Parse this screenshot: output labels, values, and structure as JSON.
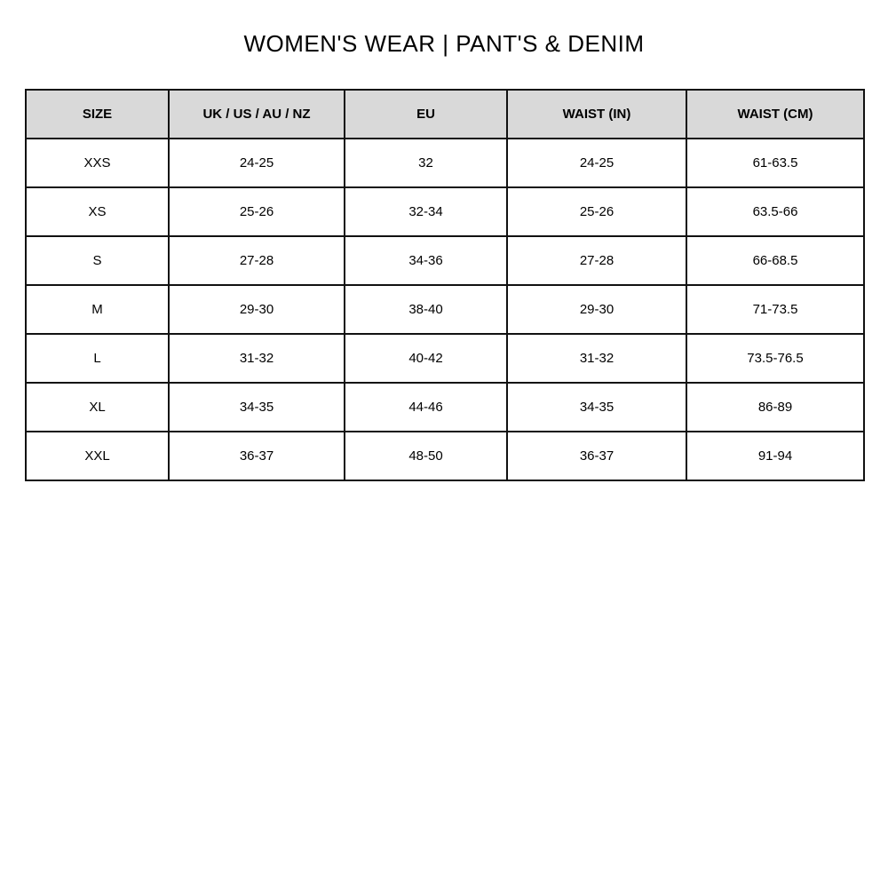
{
  "title": "WOMEN'S WEAR | PANT'S & DENIM",
  "header_bg": "#d9d9d9",
  "table": {
    "headers": [
      "SIZE",
      "UK / US / AU / NZ",
      "EU",
      "WAIST (IN)",
      "WAIST (CM)"
    ],
    "rows": [
      [
        "XXS",
        "24-25",
        "32",
        "24-25",
        "61-63.5"
      ],
      [
        "XS",
        "25-26",
        "32-34",
        "25-26",
        "63.5-66"
      ],
      [
        "S",
        "27-28",
        "34-36",
        "27-28",
        "66-68.5"
      ],
      [
        "M",
        "29-30",
        "38-40",
        "29-30",
        "71-73.5"
      ],
      [
        "L",
        "31-32",
        "40-42",
        "31-32",
        "73.5-76.5"
      ],
      [
        "XL",
        "34-35",
        "44-46",
        "34-35",
        "86-89"
      ],
      [
        "XXL",
        "36-37",
        "48-50",
        "36-37",
        "91-94"
      ]
    ]
  }
}
